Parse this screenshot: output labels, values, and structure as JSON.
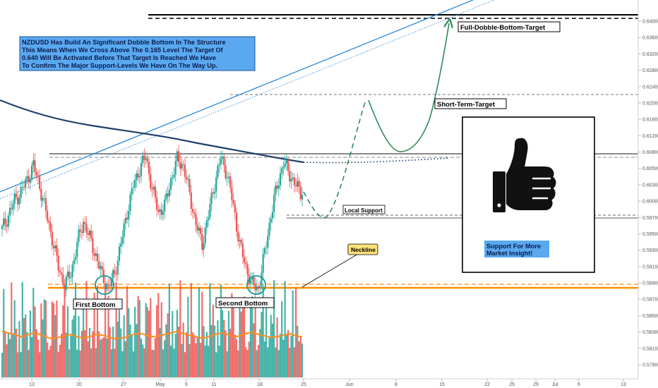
{
  "chart_data": {
    "type": "candlestick",
    "symbol": "NZDUSD",
    "y_ticks": [
      "0.64000",
      "0.63600",
      "0.63200",
      "0.62800",
      "0.62400",
      "0.62000",
      "0.61600",
      "0.61200",
      "0.60800",
      "0.60500",
      "0.60300",
      "0.60000",
      "0.59700",
      "0.59500",
      "0.59300",
      "0.59100",
      "0.58900",
      "0.58700",
      "0.58500",
      "0.58300",
      "0.58100",
      "0.57900"
    ],
    "x_ticks": [
      "13",
      "20",
      "27",
      "May",
      "6",
      "11",
      "18",
      "25",
      "Jun",
      "8",
      "15",
      "22",
      "25",
      "29",
      "Jul",
      "6",
      "13"
    ],
    "levels": {
      "full_target": 0.64,
      "short_target": 0.6265,
      "resistance": 0.6155,
      "local_support": 0.604,
      "neckline": 0.5925
    },
    "price_series": [
      0.6025,
      0.605,
      0.6075,
      0.609,
      0.611,
      0.6135,
      0.61,
      0.6055,
      0.601,
      0.596,
      0.593,
      0.595,
      0.6,
      0.604,
      0.601,
      0.598,
      0.5945,
      0.5925,
      0.595,
      0.6,
      0.6055,
      0.61,
      0.613,
      0.615,
      0.6095,
      0.6055,
      0.6065,
      0.611,
      0.6145,
      0.6135,
      0.6085,
      0.6035,
      0.6,
      0.605,
      0.6105,
      0.6148,
      0.612,
      0.6065,
      0.6,
      0.596,
      0.593,
      0.5924,
      0.5985,
      0.605,
      0.61,
      0.614,
      0.612,
      0.61,
      0.6085
    ],
    "volume_ma": [
      0.62,
      0.6,
      0.58,
      0.55,
      0.57,
      0.6,
      0.58,
      0.55,
      0.52,
      0.54,
      0.56,
      0.58,
      0.55,
      0.53,
      0.55,
      0.58,
      0.57,
      0.55,
      0.52,
      0.53,
      0.55,
      0.58,
      0.6,
      0.57,
      0.55,
      0.56,
      0.58,
      0.6,
      0.62,
      0.59,
      0.57,
      0.55,
      0.53,
      0.55,
      0.58,
      0.6,
      0.58,
      0.55,
      0.56,
      0.59,
      0.61,
      0.58,
      0.56,
      0.54,
      0.55,
      0.57,
      0.59,
      0.56,
      0.55
    ],
    "projection": [
      0.6085,
      0.604,
      0.615,
      0.626,
      0.617,
      0.6157,
      0.627,
      0.64
    ],
    "title": ""
  },
  "annotations": {
    "info_box": [
      "NZDUSD Has Build An Significant Dobble Bottom In The Structure",
      "This Means When We Cross Above The 0.165 Level The Target Of",
      "0.640 Will Be Activated Before That Target Is Reached We Have",
      "To Confirm The Major Support-Levels We Have On The Way Up."
    ],
    "full_target_label": "Full-Dobble-Bottom-Target",
    "short_target_label": "Short-Term-Target",
    "local_support_label": "Local Support",
    "neckline_label": "Neckline",
    "first_bottom_label": "First Bottom",
    "second_bottom_label": "Second Bottom",
    "support_text": [
      "Support For More",
      "Market Insight!"
    ]
  },
  "colors": {
    "bull": "#26a69a",
    "bear": "#ef5350",
    "ma_line": "#1f3f6b",
    "trend_line": "#3a8fdc",
    "neckline": "#ff8c00",
    "projection": "#2e8b57",
    "info_bg": "#5aa9f0",
    "bullet_circle": "#1a9a9a",
    "volume_ma": "#ff8c1a"
  },
  "icons": {
    "thumbs_up": "thumbs-up-icon"
  }
}
